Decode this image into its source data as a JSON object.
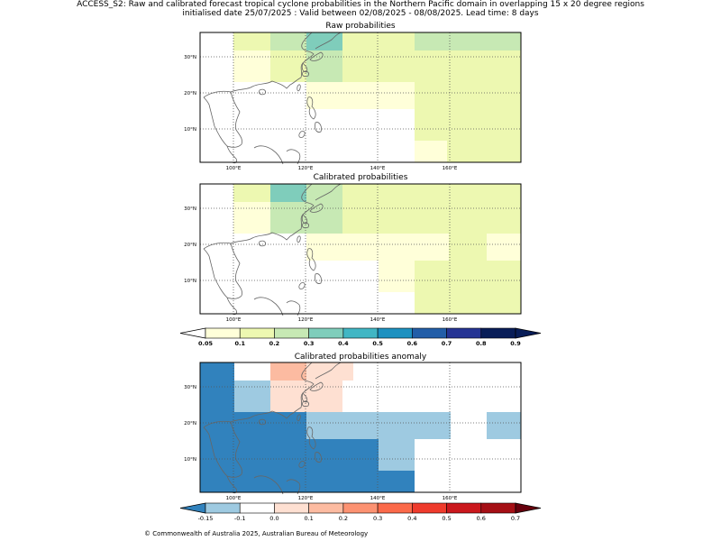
{
  "title_line1": "ACCESS_S2: Raw and calibrated forecast tropical cyclone probabilities in the Northern Pacific domain in overlapping 15 x 20 degree regions",
  "title_line2": "initialised date 25/07/2025 :  Valid between 02/08/2025 - 08/08/2025. Lead time: 8 days",
  "panels": [
    {
      "title": "Raw probabilities"
    },
    {
      "title": "Calibrated probabilities"
    },
    {
      "title": "Calibrated probabilities anomaly"
    }
  ],
  "lon_labels": [
    "100°E",
    "120°E",
    "140°E",
    "160°E"
  ],
  "lat_labels": [
    "30°N",
    "20°N",
    "10°N"
  ],
  "colorbar_prob": {
    "ticks": [
      "0.05",
      "0.1",
      "0.2",
      "0.3",
      "0.4",
      "0.5",
      "0.6",
      "0.7",
      "0.8",
      "0.9"
    ],
    "colors": [
      "#ffffd9",
      "#edf8b1",
      "#c7e9b4",
      "#7fcdbb",
      "#41b6c4",
      "#1d91c0",
      "#225ea8",
      "#253494",
      "#081d58"
    ],
    "under": "#ffffff",
    "over": "#081d58"
  },
  "colorbar_anom": {
    "ticks": [
      "-0.15",
      "-0.1",
      "0.0",
      "0.1",
      "0.2",
      "0.3",
      "0.4",
      "0.5",
      "0.6",
      "0.7"
    ],
    "colors": [
      "#9ecae1",
      "#ffffff",
      "#fee0d2",
      "#fcbba1",
      "#fc9272",
      "#fb6a4a",
      "#ef3b2c",
      "#cb181d",
      "#a50f15"
    ],
    "under": "#3182bd",
    "over": "#67000d"
  },
  "copyright": "© Commonwealth of Australia 2025, Australian Bureau of Meteorology"
}
